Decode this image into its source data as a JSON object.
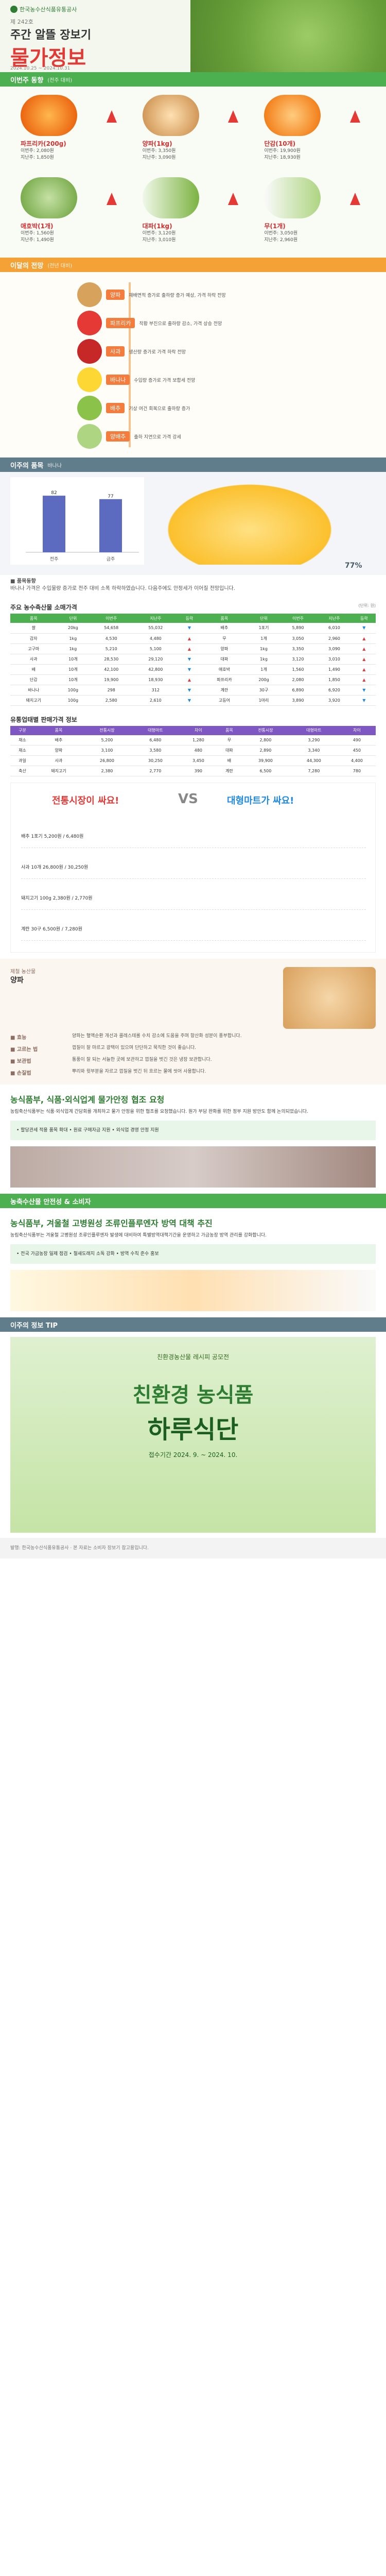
{
  "header": {
    "org": "한국농수산식품유통공사",
    "issue": "제 242호",
    "subtitle": "주간 알뜰 장보기",
    "title": "물가정보",
    "dates": "2024.10.25 ~ 2024.10.31"
  },
  "rising": {
    "label": "이번주 동향",
    "sub": "(전주 대비)",
    "items": [
      {
        "name": "파프리카(200g)",
        "l1": "이번주: 2,080원",
        "l2": "지난주: 1,850원"
      },
      {
        "name": "양파(1kg)",
        "l1": "이번주: 3,350원",
        "l2": "지난주: 3,090원"
      },
      {
        "name": "단감(10개)",
        "l1": "이번주: 19,900원",
        "l2": "지난주: 18,930원"
      },
      {
        "name": "애호박(1개)",
        "l1": "이번주: 1,560원",
        "l2": "지난주: 1,490원"
      },
      {
        "name": "대파(1kg)",
        "l1": "이번주: 3,120원",
        "l2": "지난주: 3,010원"
      },
      {
        "name": "무(1개)",
        "l1": "이번주: 3,050원",
        "l2": "지난주: 2,960원"
      }
    ]
  },
  "flow": {
    "label": "이달의 전망",
    "sub": "(전년 대비)",
    "nodes": [
      {
        "tag": "양파",
        "text": "재배면적 증가로 출하량 증가 예상, 가격 하락 전망"
      },
      {
        "tag": "파프리카",
        "text": "작황 부진으로 출하량 감소, 가격 상승 전망"
      },
      {
        "tag": "사과",
        "text": "생산량 증가로 가격 하락 전망"
      },
      {
        "tag": "바나나",
        "text": "수입량 증가로 가격 보합세 전망"
      },
      {
        "tag": "배추",
        "text": "기상 여건 회복으로 출하량 증가"
      },
      {
        "tag": "양배추",
        "text": "출하 지연으로 가격 강세"
      }
    ]
  },
  "weekly_pick": {
    "label": "이주의 품목",
    "sub": "바나나",
    "note_title": "■ 품목동향",
    "note": "바나나 가격은 수입물량 증가로 전주 대비 소폭 하락하였습니다. 다음주에도 안정세가 이어질 전망입니다.",
    "unit": "77%"
  },
  "chart_data": {
    "type": "bar",
    "categories": [
      "전주",
      "금주"
    ],
    "values": [
      82,
      77
    ],
    "ylim": [
      0,
      100
    ]
  },
  "table1": {
    "title": "주요 농수축산물 소매가격",
    "unit": "(단위: 원)",
    "headers": [
      "품목",
      "단위",
      "이번주",
      "지난주",
      "등락",
      "품목",
      "단위",
      "이번주",
      "지난주",
      "등락"
    ],
    "rows": [
      [
        "쌀",
        "20kg",
        "54,658",
        "55,032",
        "▼",
        "배추",
        "1포기",
        "5,890",
        "6,010",
        "▼"
      ],
      [
        "감자",
        "1kg",
        "4,530",
        "4,480",
        "▲",
        "무",
        "1개",
        "3,050",
        "2,960",
        "▲"
      ],
      [
        "고구마",
        "1kg",
        "5,210",
        "5,100",
        "▲",
        "양파",
        "1kg",
        "3,350",
        "3,090",
        "▲"
      ],
      [
        "사과",
        "10개",
        "28,530",
        "29,120",
        "▼",
        "대파",
        "1kg",
        "3,120",
        "3,010",
        "▲"
      ],
      [
        "배",
        "10개",
        "42,100",
        "42,800",
        "▼",
        "애호박",
        "1개",
        "1,560",
        "1,490",
        "▲"
      ],
      [
        "단감",
        "10개",
        "19,900",
        "18,930",
        "▲",
        "파프리카",
        "200g",
        "2,080",
        "1,850",
        "▲"
      ],
      [
        "바나나",
        "100g",
        "298",
        "312",
        "▼",
        "계란",
        "30구",
        "6,890",
        "6,920",
        "▼"
      ],
      [
        "돼지고기",
        "100g",
        "2,580",
        "2,610",
        "▼",
        "고등어",
        "1마리",
        "3,890",
        "3,920",
        "▼"
      ]
    ]
  },
  "table2": {
    "title": "유통업태별 판매가격 정보",
    "headers": [
      "구분",
      "품목",
      "전통시장",
      "대형마트",
      "차이",
      "품목",
      "전통시장",
      "대형마트",
      "차이"
    ],
    "rows": [
      [
        "채소",
        "배추",
        "5,200",
        "6,480",
        "1,280",
        "무",
        "2,800",
        "3,290",
        "490"
      ],
      [
        "채소",
        "양파",
        "3,100",
        "3,580",
        "480",
        "대파",
        "2,890",
        "3,340",
        "450"
      ],
      [
        "과일",
        "사과",
        "26,800",
        "30,250",
        "3,450",
        "배",
        "39,900",
        "44,300",
        "4,400"
      ],
      [
        "축산",
        "돼지고기",
        "2,380",
        "2,770",
        "390",
        "계란",
        "6,500",
        "7,280",
        "780"
      ]
    ]
  },
  "vs": {
    "left": "전통시장이 싸요!",
    "mid": "VS",
    "right": "대형마트가 싸요!",
    "rows": [
      "배추 1포기 5,200원 / 6,480원",
      "사과 10개 26,800원 / 30,250원",
      "돼지고기 100g 2,380원 / 2,770원",
      "계란 30구 6,500원 / 7,280원"
    ]
  },
  "onion": {
    "section": "제철 농산물",
    "name": "양파",
    "rows": [
      {
        "label": "■ 효능",
        "desc": "양파는 혈액순환 개선과 콜레스테롤 수치 감소에 도움을 주며 항산화 성분이 풍부합니다."
      },
      {
        "label": "■ 고르는 법",
        "desc": "껍질이 잘 마르고 광택이 있으며 단단하고 묵직한 것이 좋습니다."
      },
      {
        "label": "■ 보관법",
        "desc": "통풍이 잘 되는 서늘한 곳에 보관하고 껍질을 벗긴 것은 냉장 보관합니다."
      },
      {
        "label": "■ 손질법",
        "desc": "뿌리와 윗부분을 자르고 껍질을 벗긴 뒤 흐르는 물에 씻어 사용합니다."
      }
    ]
  },
  "news1": {
    "title": "농식품부, 식품·외식업계 물가안정 협조 요청",
    "body": "농림축산식품부는 식품·외식업계 간담회를 개최하고 물가 안정을 위한 협조를 요청했습니다. 원가 부담 완화를 위한 정부 지원 방안도 함께 논의되었습니다.",
    "card": "• 할당관세 적용 품목 확대 • 원료 구매자금 지원 • 외식업 경영 안정 지원"
  },
  "news2": {
    "section": "농축수산물 안전성 & 소비자",
    "title": "농식품부, 겨울철 고병원성 조류인플루엔자 방역 대책 추진",
    "body": "농림축산식품부는 겨울철 고병원성 조류인플루엔자 발생에 대비하여 특별방역대책기간을 운영하고 가금농장 방역 관리를 강화합니다.",
    "card": "• 전국 가금농장 일제 점검 • 철새도래지 소독 강화 • 방역 수칙 준수 홍보"
  },
  "tip": {
    "section": "이주의 정보 TIP",
    "banner_small": "친환경농산물 레시피 공모전",
    "banner_title": "친환경 농식품",
    "banner_sub": "하루식단",
    "banner_date": "접수기간 2024. 9. ~ 2024. 10."
  },
  "footer": "발행: 한국농수산식품유통공사 · 본 자료는 소비자 장보기 참고용입니다."
}
